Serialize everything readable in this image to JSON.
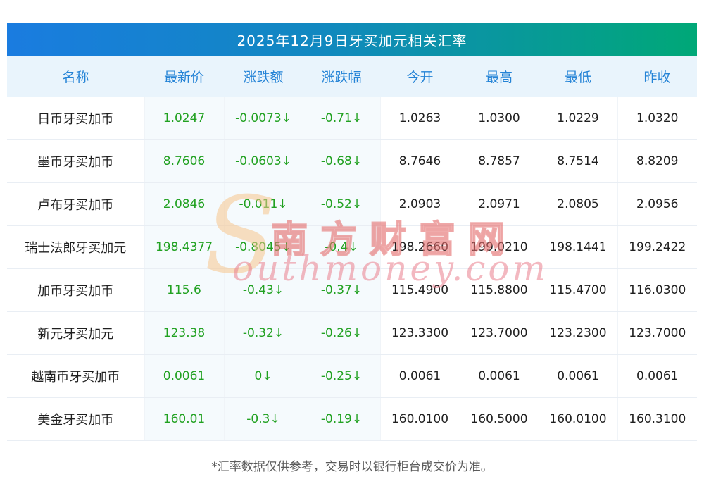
{
  "colors": {
    "title_gradient_start": "#1a7ce0",
    "title_gradient_end": "#00a877",
    "header_bg": "#e9f4fc",
    "header_text": "#2483d6",
    "down_green": "#21a121",
    "tinted_column_bg": "#f5fafd",
    "footer_text": "#5a5a5a"
  },
  "chart_data": {
    "type": "table",
    "title": "2025年12月9日牙买加元相关汇率",
    "headers": [
      "名称",
      "最新价",
      "涨跌额",
      "涨跌幅",
      "今开",
      "最高",
      "最低",
      "昨收"
    ],
    "column_keys": [
      "name",
      "latest",
      "change",
      "change-pct",
      "open",
      "high",
      "low",
      "prev-close"
    ],
    "rows": [
      [
        "日币牙买加币",
        "1.0247",
        "-0.0073↓",
        "-0.71↓",
        "1.0263",
        "1.0300",
        "1.0229",
        "1.0320"
      ],
      [
        "墨币牙买加币",
        "8.7606",
        "-0.0603↓",
        "-0.68↓",
        "8.7646",
        "8.7857",
        "8.7514",
        "8.8209"
      ],
      [
        "卢布牙买加币",
        "2.0846",
        "-0.011↓",
        "-0.52↓",
        "2.0903",
        "2.0971",
        "2.0805",
        "2.0956"
      ],
      [
        "瑞士法郎牙买加元",
        "198.4377",
        "-0.8045↓",
        "-0.4↓",
        "198.2660",
        "199.0210",
        "198.1441",
        "199.2422"
      ],
      [
        "加币牙买加币",
        "115.6",
        "-0.43↓",
        "-0.37↓",
        "115.4900",
        "115.8800",
        "115.4700",
        "116.0300"
      ],
      [
        "新元牙买加元",
        "123.38",
        "-0.32↓",
        "-0.26↓",
        "123.3300",
        "123.7000",
        "123.2300",
        "123.7000"
      ],
      [
        "越南币牙买加币",
        "0.0061",
        "0↓",
        "-0.25↓",
        "0.0061",
        "0.0061",
        "0.0061",
        "0.0061"
      ],
      [
        "美金牙买加币",
        "160.01",
        "-0.3↓",
        "-0.19↓",
        "160.0100",
        "160.5000",
        "160.0100",
        "160.3100"
      ]
    ]
  },
  "watermark": {
    "symbol": "S",
    "cn": "南方财富网",
    "en": "outhmoney.com"
  },
  "footer_note": "*汇率数据仅供参考，交易时以银行柜台成交价为准。"
}
